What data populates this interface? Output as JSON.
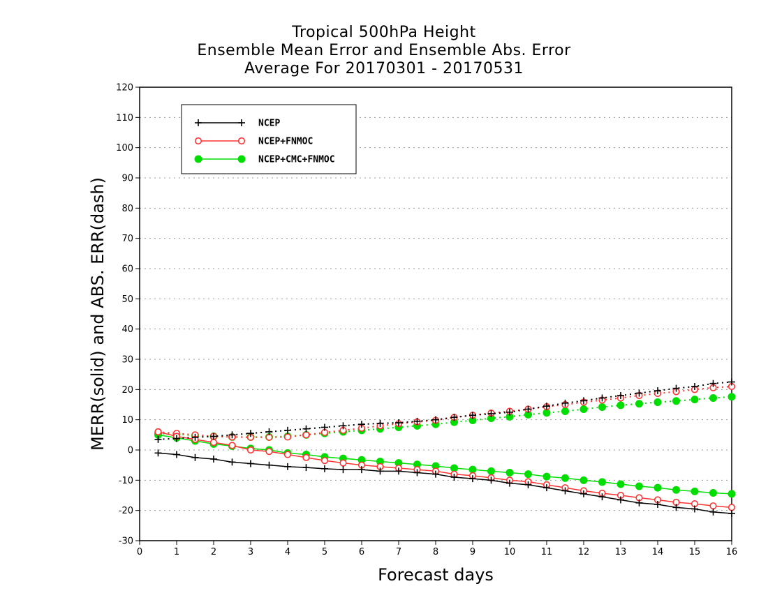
{
  "chart_data": {
    "type": "line",
    "title": [
      "Tropical 500hPa Height",
      "Ensemble Mean Error and Ensemble Abs. Error",
      "Average For 20170301 - 20170531"
    ],
    "xlabel": "Forecast days",
    "ylabel": "MERR(solid) and ABS. ERR(dash)",
    "xlim": [
      0,
      16
    ],
    "ylim": [
      -30,
      120
    ],
    "xticks": [
      0,
      1,
      2,
      3,
      4,
      5,
      6,
      7,
      8,
      9,
      10,
      11,
      12,
      13,
      14,
      15,
      16
    ],
    "yticks": [
      -30,
      -20,
      -10,
      0,
      10,
      20,
      30,
      40,
      50,
      60,
      70,
      80,
      90,
      100,
      110,
      120
    ],
    "grid": true,
    "legend_position": "top-left",
    "x": [
      0.5,
      1,
      1.5,
      2,
      2.5,
      3,
      3.5,
      4,
      4.5,
      5,
      5.5,
      6,
      6.5,
      7,
      7.5,
      8,
      8.5,
      9,
      9.5,
      10,
      10.5,
      11,
      11.5,
      12,
      12.5,
      13,
      13.5,
      14,
      14.5,
      15,
      15.5,
      16
    ],
    "series": [
      {
        "name": "NCEP",
        "color": "#000000",
        "marker": "plus",
        "merr": [
          -1,
          -1.5,
          -2.5,
          -3,
          -4,
          -4.5,
          -5,
          -5.5,
          -5.8,
          -6.2,
          -6.5,
          -6.5,
          -7,
          -7,
          -7.5,
          -8,
          -9,
          -9.5,
          -10,
          -11,
          -11.5,
          -12.5,
          -13.5,
          -14.5,
          -15.5,
          -16.5,
          -17.5,
          -18,
          -19,
          -19.5,
          -20.5,
          -21
        ],
        "abserr": [
          3.5,
          3.8,
          4.2,
          4.5,
          5,
          5.5,
          6,
          6.5,
          7,
          7.5,
          8,
          8.5,
          8.8,
          9,
          9.5,
          10,
          10.8,
          11.5,
          12,
          12.5,
          13.5,
          14.5,
          15.5,
          16.3,
          17.2,
          18,
          18.8,
          19.6,
          20.4,
          21,
          22,
          22.5
        ]
      },
      {
        "name": "NCEP+FNMOC",
        "color": "#ff3333",
        "marker": "open-circle",
        "merr": [
          6,
          4.5,
          3.5,
          2.5,
          1.5,
          0,
          -0.5,
          -1.5,
          -2.5,
          -3.5,
          -4.3,
          -5,
          -5.5,
          -6,
          -6.5,
          -7,
          -8,
          -8.5,
          -9.2,
          -10,
          -10.5,
          -11.5,
          -12.5,
          -13.5,
          -14.3,
          -15,
          -15.8,
          -16.5,
          -17.3,
          -17.8,
          -18.5,
          -19
        ],
        "abserr": [
          6,
          5.5,
          5,
          4.5,
          4.3,
          4.2,
          4.2,
          4.3,
          5,
          5.8,
          6.5,
          7.2,
          8,
          8.7,
          9.3,
          9.8,
          10.8,
          11.5,
          12.2,
          12.8,
          13.5,
          14.3,
          15,
          15.8,
          16.5,
          17.2,
          18,
          18.7,
          19.3,
          20,
          20.6,
          21
        ]
      },
      {
        "name": "NCEP+CMC+FNMOC",
        "color": "#00dd00",
        "marker": "filled-circle",
        "merr": [
          5,
          4,
          3,
          2,
          1.3,
          0.5,
          0,
          -1,
          -1.5,
          -2.3,
          -2.8,
          -3.3,
          -3.8,
          -4.3,
          -4.8,
          -5.3,
          -6,
          -6.5,
          -7,
          -7.5,
          -8,
          -8.8,
          -9.3,
          -10,
          -10.6,
          -11.3,
          -12,
          -12.5,
          -13.2,
          -13.7,
          -14.2,
          -14.5
        ],
        "abserr": [
          5.5,
          5.2,
          4.8,
          4.5,
          4.3,
          4.3,
          4.3,
          4.5,
          5,
          5.5,
          6,
          6.5,
          7,
          7.5,
          8,
          8.5,
          9.2,
          9.8,
          10.5,
          11,
          11.7,
          12.3,
          12.8,
          13.5,
          14.2,
          14.8,
          15.3,
          15.8,
          16.2,
          16.7,
          17.2,
          17.6
        ]
      }
    ]
  }
}
